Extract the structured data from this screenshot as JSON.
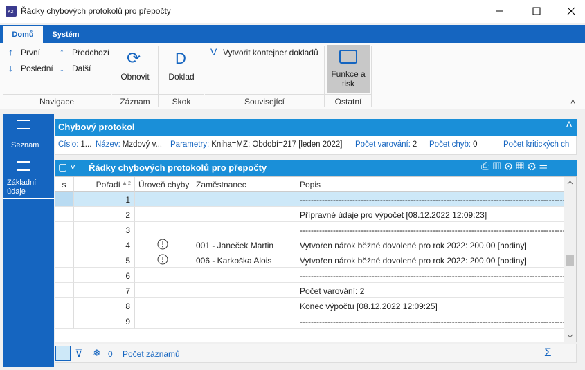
{
  "window": {
    "title": "Řádky chybových protokolů pro přepočty"
  },
  "ribbon": {
    "tabs": [
      "Domů",
      "Systém"
    ],
    "groups": [
      {
        "label": "Navigace",
        "buttons": [
          "První",
          "Předchozí",
          "Poslední",
          "Další"
        ]
      },
      {
        "label": "Záznam",
        "buttons": [
          "Obnovit"
        ]
      },
      {
        "label": "Skok",
        "buttons": [
          "Doklad"
        ]
      },
      {
        "label": "Související",
        "buttons": [
          "Vytvořit kontejner dokladů"
        ]
      },
      {
        "label": "Ostatní",
        "buttons": [
          "Funkce a tisk"
        ]
      }
    ]
  },
  "sidebar": [
    "Seznam",
    "Základní údaje"
  ],
  "header_panel": {
    "title": "Chybový protokol",
    "fields": [
      {
        "label": "Číslo:",
        "value": "1..."
      },
      {
        "label": "Název:",
        "value": "Mzdový v..."
      },
      {
        "label": "Parametry:",
        "value": "Kniha=MZ; Období=217 [leden 2022]"
      },
      {
        "label": "Počet varování:",
        "value": "2"
      },
      {
        "label": "Počet chyb:",
        "value": "0"
      },
      {
        "label": "Počet kritických ch"
      }
    ]
  },
  "grid": {
    "title": "Řádky chybových protokolů pro přepočty",
    "columns": [
      "s",
      "Pořadí",
      "Úroveň chyby",
      "Zaměstnanec",
      "Popis"
    ],
    "sort_order": 2,
    "rows": [
      {
        "order": 1,
        "description": "------------------------------------------------------------------------------------------------"
      },
      {
        "order": 2,
        "description": "Přípravné údaje pro výpočet [08.12.2022 12:09:23]"
      },
      {
        "order": 3,
        "description": "------------------------------------------------------------------------------------------------"
      },
      {
        "order": 4,
        "employee": "001 - Janeček Martin",
        "description": "Vytvořen nárok běžné dovolené pro rok 2022:   200,00 [hodiny]"
      },
      {
        "order": 5,
        "employee": "006 - Karkoška Alois",
        "description": "Vytvořen nárok běžné dovolené pro rok 2022:   200,00 [hodiny]"
      },
      {
        "order": 6,
        "description": "------------------------------------------------------------------------------------------------"
      },
      {
        "order": 7,
        "description": "Počet varování: 2"
      },
      {
        "order": 8,
        "description": "Konec výpočtu [08.12.2022 12:09:25]"
      },
      {
        "order": 9,
        "description": "------------------------------------------------------------------------------------------------"
      }
    ]
  },
  "status": {
    "filter_count": 0,
    "label": "Počet záznamů"
  }
}
